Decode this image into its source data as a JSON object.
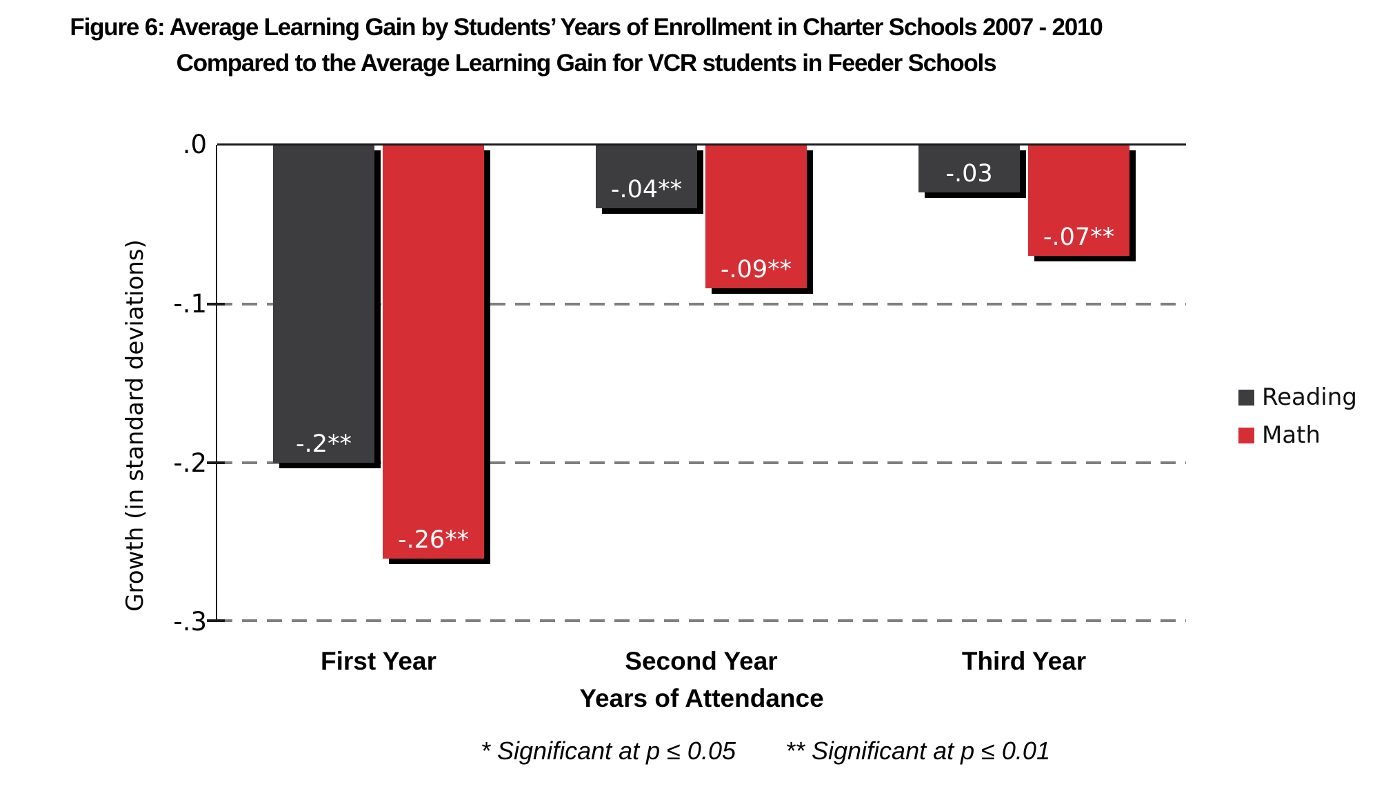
{
  "title": {
    "line1": "Figure 6: Average Learning Gain by Students’ Years of Enrollment in Charter Schools 2007 - 2010",
    "line2": "Compared to the Average Learning Gain for VCR students in Feeder Schools"
  },
  "y_axis": {
    "title": "Growth (in standard deviations)",
    "ticks": [
      ".0",
      "-.1",
      "-.2",
      "-.3"
    ]
  },
  "x_axis": {
    "title": "Years of Attendance",
    "categories": [
      "First Year",
      "Second Year",
      "Third Year"
    ]
  },
  "legend": {
    "items": [
      {
        "label": "Reading"
      },
      {
        "label": "Math"
      }
    ]
  },
  "footnote": {
    "sig1": "* Significant at p ≤ 0.05",
    "sig2": "** Significant at p ≤ 0.01"
  },
  "colors": {
    "reading": "#3d3d3f",
    "math": "#d62e35",
    "gridline": "#7f7f7f",
    "axis": "#1a1a1a",
    "bar_shadow": "#000000",
    "bar_label_text": "#ffffff"
  },
  "chart_data": {
    "type": "bar",
    "title": "Figure 6: Average Learning Gain by Students’ Years of Enrollment in Charter Schools 2007 - 2010 Compared to the Average Learning Gain for VCR students in Feeder Schools",
    "xlabel": "Years of Attendance",
    "ylabel": "Growth (in standard deviations)",
    "categories": [
      "First Year",
      "Second Year",
      "Third Year"
    ],
    "series": [
      {
        "name": "Reading",
        "color": "#3d3d3f",
        "values": [
          -0.2,
          -0.04,
          -0.03
        ],
        "labels": [
          "-.2**",
          "-.04**",
          "-.03"
        ]
      },
      {
        "name": "Math",
        "color": "#d62e35",
        "values": [
          -0.26,
          -0.09,
          -0.07
        ],
        "labels": [
          "-.26**",
          "-.09**",
          "-.07**"
        ]
      }
    ],
    "ylim": [
      -0.3,
      0
    ],
    "yticks": [
      0,
      -0.1,
      -0.2,
      -0.3
    ],
    "grid": "horizontal dashed at -0.1, -0.2, -0.3; solid baseline at 0",
    "legend_position": "right",
    "annotations": [
      "* Significant at p ≤ 0.05",
      "** Significant at p ≤ 0.01"
    ]
  }
}
